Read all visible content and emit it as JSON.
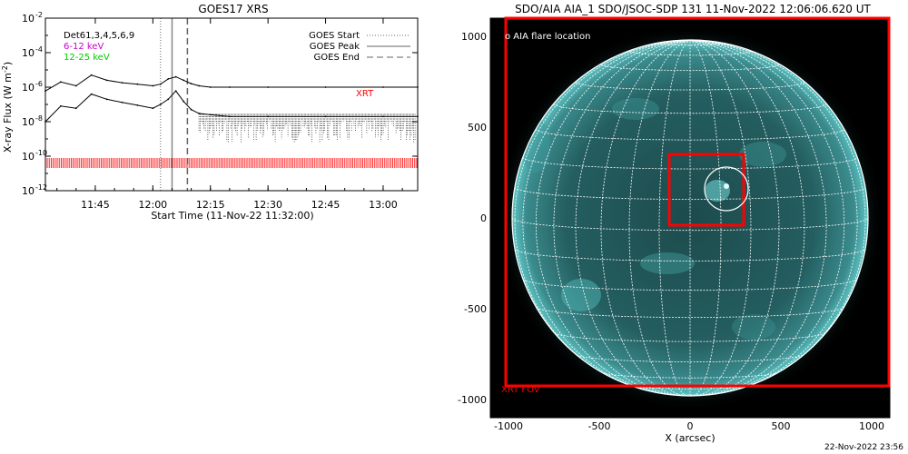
{
  "left_panel": {
    "title": "GOES17 XRS",
    "ylabel": "X-ray Flux (W m",
    "ylabel_sup": "-2",
    "ylabel_end": ")",
    "xlabel": "Start Time (11-Nov-22 11:32:00)",
    "legend_left": [
      {
        "text": "Det61,3,4,5,6,9",
        "color": "#000000"
      },
      {
        "text": "6-12 keV",
        "color": "#cc00cc"
      },
      {
        "text": "12-25 keV",
        "color": "#00cc00"
      }
    ],
    "legend_right": [
      {
        "text": "GOES Start",
        "style": "dotted"
      },
      {
        "text": "GOES Peak",
        "style": "solid"
      },
      {
        "text": "GOES End",
        "style": "dashed"
      }
    ],
    "xrt_label": "XRT",
    "y_ticks": [
      {
        "base": "10",
        "exp": "-2",
        "log": -2
      },
      {
        "base": "10",
        "exp": "-4",
        "log": -4
      },
      {
        "base": "10",
        "exp": "-6",
        "log": -6
      },
      {
        "base": "10",
        "exp": "-8",
        "log": -8
      },
      {
        "base": "10",
        "exp": "-10",
        "log": -10
      },
      {
        "base": "10",
        "exp": "-12",
        "log": -12
      }
    ],
    "x_ticks": [
      "11:45",
      "12:00",
      "12:15",
      "12:30",
      "12:45",
      "13:00"
    ]
  },
  "right_panel": {
    "title": "SDO/AIA AIA_1 SDO/JSOC-SDP 131 11-Nov-2022 12:06:06.620 UT",
    "flare_label": "AIA flare location",
    "xrt_fov_label": "XRT FOV",
    "xlabel": "X (arcsec)",
    "x_ticks": [
      "-1000",
      "-500",
      "0",
      "500",
      "1000"
    ],
    "y_ticks": [
      "1000",
      "500",
      "0",
      "-500",
      "-1000"
    ],
    "colors": {
      "disk": "#3a8a8c",
      "grid": "#ffffff",
      "fov": "#ff0000"
    }
  },
  "footer_timestamp": "22-Nov-2022 23:56",
  "chart_data": [
    {
      "type": "line",
      "title": "GOES17 XRS",
      "xlabel": "Start Time (11-Nov-22 11:32:00)",
      "ylabel": "X-ray Flux (W m-2)",
      "y_scale": "log",
      "ylim": [
        1e-12,
        0.01
      ],
      "x_range": [
        "11:32",
        "13:09"
      ],
      "series": [
        {
          "name": "6-12 keV",
          "x": [
            "11:32",
            "11:36",
            "11:40",
            "11:44",
            "11:48",
            "11:52",
            "11:56",
            "12:00",
            "12:02",
            "12:04",
            "12:06",
            "12:08",
            "12:10",
            "12:12",
            "12:15",
            "12:20",
            "12:30",
            "12:45",
            "13:00",
            "13:09"
          ],
          "y": [
            6e-07,
            2e-06,
            1.2e-06,
            5e-06,
            2.5e-06,
            1.8e-06,
            1.5e-06,
            1.2e-06,
            1.5e-06,
            3e-06,
            4e-06,
            2.5e-06,
            1.6e-06,
            1.2e-06,
            1e-06,
            1e-06,
            1e-06,
            1e-06,
            1e-06,
            1e-06
          ]
        },
        {
          "name": "12-25 keV",
          "x": [
            "11:32",
            "11:36",
            "11:40",
            "11:44",
            "11:48",
            "11:52",
            "11:56",
            "12:00",
            "12:02",
            "12:04",
            "12:06",
            "12:08",
            "12:10",
            "12:12",
            "12:15",
            "12:20",
            "12:30",
            "12:45",
            "13:00",
            "13:09"
          ],
          "y": [
            1e-08,
            8e-08,
            6e-08,
            4e-07,
            2e-07,
            1.3e-07,
            9e-08,
            6e-08,
            1e-07,
            2e-07,
            6e-07,
            1.5e-07,
            5e-08,
            3e-08,
            2.5e-08,
            2e-08,
            2e-08,
            2e-08,
            2e-08,
            2e-08
          ]
        }
      ],
      "markers": {
        "goes_start": "12:02",
        "goes_peak": "12:05",
        "goes_end": "12:09"
      }
    },
    {
      "type": "image",
      "title": "SDO/AIA AIA_1 SDO/JSOC-SDP 131 11-Nov-2022 12:06:06.620 UT",
      "xlabel": "X (arcsec)",
      "xlim": [
        -1100,
        1100
      ],
      "ylim": [
        -1100,
        1100
      ],
      "solar_radius": 980,
      "flare_location": [
        200,
        160
      ],
      "flare_circle_radius": 120,
      "zoom_box": {
        "x": [
          -120,
          290
        ],
        "y": [
          -40,
          350
        ]
      },
      "xrt_fov": {
        "x": [
          -1000,
          1100
        ],
        "y": [
          -920,
          1100
        ]
      }
    }
  ]
}
